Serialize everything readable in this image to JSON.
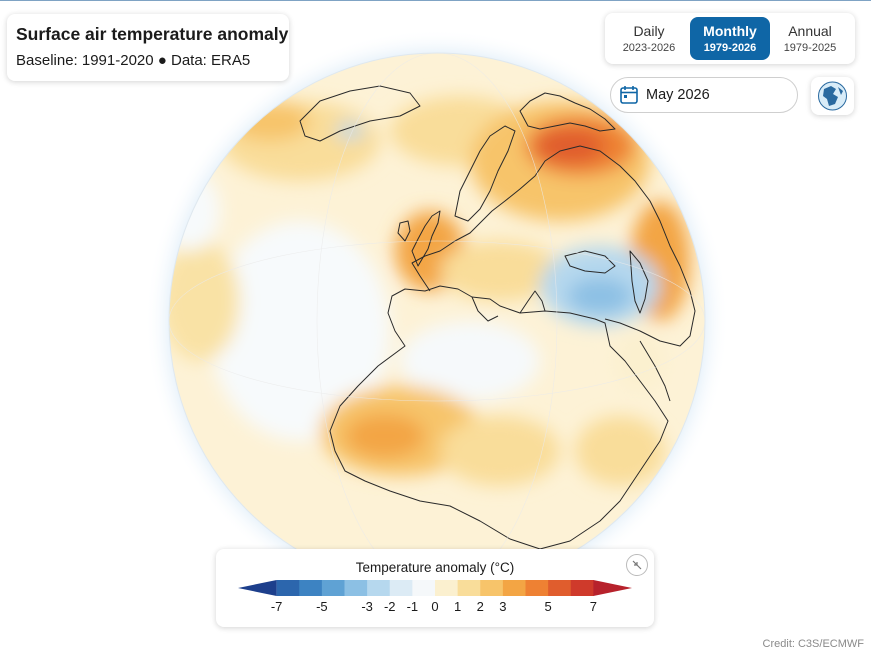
{
  "header": {
    "title": "Surface air temperature anomaly",
    "subtitle": "Baseline: 1991-2020 ● Data: ERA5"
  },
  "frequency_tabs": [
    {
      "label": "Daily",
      "range": "2023-2026",
      "active": false
    },
    {
      "label": "Monthly",
      "range": "1979-2026",
      "active": true
    },
    {
      "label": "Annual",
      "range": "1979-2025",
      "active": false
    }
  ],
  "date_picker": {
    "value": "May 2026",
    "icon": "calendar-icon"
  },
  "globe_button": {
    "icon": "globe-icon"
  },
  "legend": {
    "title": "Temperature anomaly (°C)",
    "ticks": [
      "-7",
      "-5",
      "-3",
      "-2",
      "-1",
      "0",
      "1",
      "2",
      "3",
      "5",
      "7"
    ],
    "colors": [
      "#1d3f8c",
      "#2c66ad",
      "#3d83c2",
      "#5fa2d4",
      "#8cc0e4",
      "#b6d8ee",
      "#dcebf5",
      "#f5f8fa",
      "#fbf0cf",
      "#f9dd9a",
      "#f7c46a",
      "#f3a544",
      "#ee8133",
      "#e05d2d",
      "#cf3a2b",
      "#b7222c"
    ],
    "collapse_icon": "collapse-arrows-icon"
  },
  "credit": "Credit: C3S/ECMWF"
}
